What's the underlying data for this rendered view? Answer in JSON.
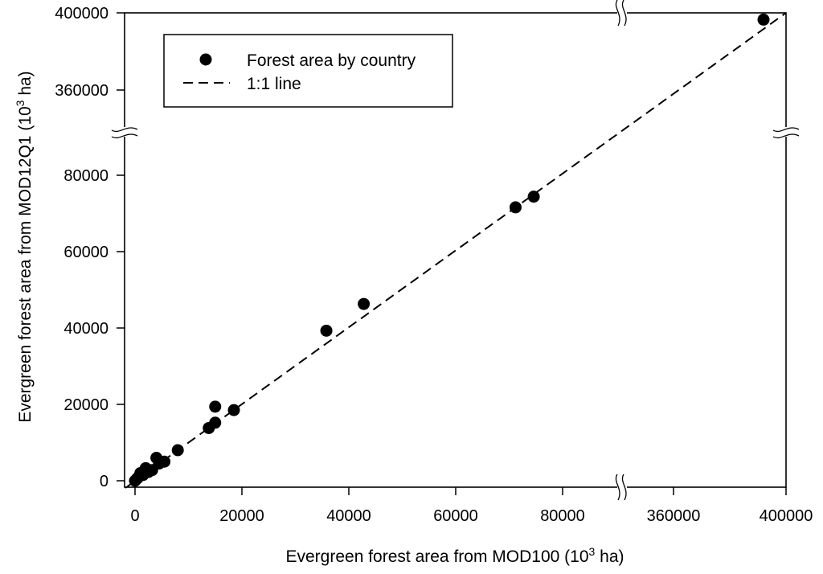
{
  "chart_data": {
    "type": "scatter",
    "title": "",
    "xlabel": "Evergreen forest area from MOD100 (10³ ha)",
    "ylabel": "Evergreen forest area from MOD12Q1 (10³ ha)",
    "axis_label_base": "Evergreen forest area from ",
    "xlabel_source": "MOD100",
    "ylabel_source": "MOD12Q1",
    "unit_prefix": "(10",
    "unit_exp": "3",
    "unit_suffix": " ha)",
    "broken_axes": true,
    "x_segments": [
      [
        0,
        85000
      ],
      [
        345000,
        400000
      ]
    ],
    "y_segments": [
      [
        0,
        85000
      ],
      [
        345000,
        400000
      ]
    ],
    "x_ticks": [
      {
        "value": 0,
        "label": "0"
      },
      {
        "value": 20000,
        "label": "20000"
      },
      {
        "value": 40000,
        "label": "40000"
      },
      {
        "value": 60000,
        "label": "60000"
      },
      {
        "value": 80000,
        "label": "80000"
      },
      {
        "value": 360000,
        "label": "360000"
      },
      {
        "value": 400000,
        "label": "400000"
      }
    ],
    "y_ticks": [
      {
        "value": 0,
        "label": "0"
      },
      {
        "value": 20000,
        "label": "20000"
      },
      {
        "value": 40000,
        "label": "40000"
      },
      {
        "value": 60000,
        "label": "60000"
      },
      {
        "value": 80000,
        "label": "80000"
      },
      {
        "value": 360000,
        "label": "360000"
      },
      {
        "value": 400000,
        "label": "400000"
      }
    ],
    "legend": {
      "position": "top-left",
      "entries": [
        {
          "label": "Forest area by country",
          "marker": "circle"
        },
        {
          "label": "1:1 line",
          "marker": "dashed-line"
        }
      ]
    },
    "series": [
      {
        "name": "Forest area by country",
        "color": "#000000",
        "points": [
          {
            "x": 0,
            "y": 0
          },
          {
            "x": 400,
            "y": 600
          },
          {
            "x": 800,
            "y": 1200
          },
          {
            "x": 1000,
            "y": 2000
          },
          {
            "x": 1500,
            "y": 1500
          },
          {
            "x": 2000,
            "y": 3300
          },
          {
            "x": 2500,
            "y": 2300
          },
          {
            "x": 3200,
            "y": 2800
          },
          {
            "x": 4000,
            "y": 6000
          },
          {
            "x": 4500,
            "y": 4500
          },
          {
            "x": 5500,
            "y": 5000
          },
          {
            "x": 8000,
            "y": 8000
          },
          {
            "x": 13800,
            "y": 13800
          },
          {
            "x": 15000,
            "y": 15200
          },
          {
            "x": 15000,
            "y": 19400
          },
          {
            "x": 18500,
            "y": 18500
          },
          {
            "x": 35800,
            "y": 39300
          },
          {
            "x": 42800,
            "y": 46300
          },
          {
            "x": 71200,
            "y": 71600
          },
          {
            "x": 74600,
            "y": 74400
          },
          {
            "x": 392000,
            "y": 396500
          }
        ]
      }
    ],
    "reference_line": {
      "name": "1:1 line",
      "from": [
        0,
        0
      ],
      "to": [
        400000,
        400000
      ],
      "style": "dashed"
    }
  }
}
